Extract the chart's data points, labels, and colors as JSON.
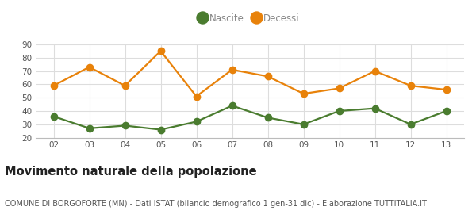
{
  "x_labels": [
    "02",
    "03",
    "04",
    "05",
    "06",
    "07",
    "08",
    "09",
    "10",
    "11",
    "12",
    "13"
  ],
  "x_values": [
    2,
    3,
    4,
    5,
    6,
    7,
    8,
    9,
    10,
    11,
    12,
    13
  ],
  "nascite": [
    36,
    27,
    29,
    26,
    32,
    44,
    35,
    30,
    40,
    42,
    30,
    40
  ],
  "decessi": [
    59,
    73,
    59,
    85,
    51,
    71,
    66,
    53,
    57,
    70,
    59,
    56
  ],
  "nascite_color": "#4a7c2f",
  "decessi_color": "#e8820a",
  "line_width": 1.6,
  "marker_size": 6,
  "ylim": [
    20,
    90
  ],
  "yticks": [
    20,
    30,
    40,
    50,
    60,
    70,
    80,
    90
  ],
  "grid_color": "#dddddd",
  "background_color": "#ffffff",
  "legend_labels": [
    "Nascite",
    "Decessi"
  ],
  "legend_text_color": "#888888",
  "title": "Movimento naturale della popolazione",
  "subtitle": "COMUNE DI BORGOFORTE (MN) - Dati ISTAT (bilancio demografico 1 gen-31 dic) - Elaborazione TUTTITALIA.IT",
  "title_fontsize": 10.5,
  "subtitle_fontsize": 7.0,
  "tick_fontsize": 7.5,
  "legend_fontsize": 8.5
}
